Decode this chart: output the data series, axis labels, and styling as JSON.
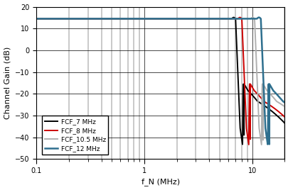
{
  "xlabel": "f_N (MHz)",
  "ylabel": "Channel Gain (dB)",
  "xlim": [
    0.1,
    20
  ],
  "ylim": [
    -50,
    20
  ],
  "yticks": [
    -50,
    -40,
    -30,
    -20,
    -10,
    0,
    10,
    20
  ],
  "xticks_major": [
    0.1,
    1,
    10
  ],
  "xtick_labels": [
    "0.1",
    "1",
    "10"
  ],
  "legend_entries": [
    "FCF_7 MHz",
    "FCF_8 MHz",
    "FCF_10.5 MHz",
    "FCF_12 MHz"
  ],
  "colors": [
    "#000000",
    "#cc0000",
    "#b0b0b0",
    "#2e6f8e"
  ],
  "linewidths": [
    1.4,
    1.4,
    1.4,
    1.8
  ],
  "fcf_values": [
    7.0,
    8.0,
    10.5,
    12.0
  ],
  "passband_gain": 14.5
}
